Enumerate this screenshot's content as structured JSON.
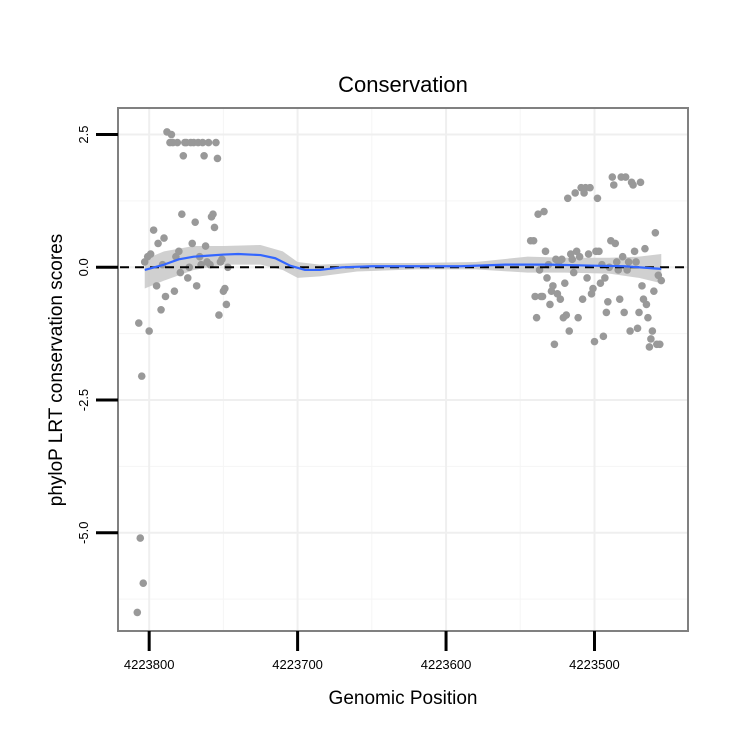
{
  "chart_data": {
    "type": "scatter",
    "title": "Conservation",
    "xlabel": "Genomic Position",
    "ylabel": "phyloP LRT conservation scores",
    "x_reversed": true,
    "xlim": [
      4223821,
      4223437
    ],
    "ylim": [
      -6.85,
      3.0
    ],
    "x_ticks": [
      4223800,
      4223700,
      4223600,
      4223500
    ],
    "x_tick_labels": [
      "4223800",
      "4223700",
      "4223600",
      "4223500"
    ],
    "y_ticks": [
      2.5,
      0.0,
      -2.5,
      -5.0
    ],
    "y_tick_labels": [
      "2.5",
      "0.0",
      "-2.5",
      "-5.0"
    ],
    "reference_line": {
      "y": 0,
      "style": "dashed",
      "color": "#000000"
    },
    "point_color": "#999999",
    "smooth_color": "#3366ff",
    "band_color": "#c8c8c8",
    "points": [
      [
        4223807,
        -1.05
      ],
      [
        4223805,
        -2.05
      ],
      [
        4223806,
        -5.1
      ],
      [
        4223804,
        -5.95
      ],
      [
        4223808,
        -6.5
      ],
      [
        4223803,
        0.1
      ],
      [
        4223801,
        0.2
      ],
      [
        4223800,
        -1.2
      ],
      [
        4223799,
        0.25
      ],
      [
        4223797,
        0.7
      ],
      [
        4223795,
        -0.35
      ],
      [
        4223794,
        0.45
      ],
      [
        4223792,
        -0.8
      ],
      [
        4223791,
        0.05
      ],
      [
        4223790,
        0.55
      ],
      [
        4223789,
        -0.55
      ],
      [
        4223788,
        2.55
      ],
      [
        4223786,
        2.35
      ],
      [
        4223785,
        2.5
      ],
      [
        4223784,
        2.35
      ],
      [
        4223783,
        -0.45
      ],
      [
        4223782,
        0.2
      ],
      [
        4223781,
        2.35
      ],
      [
        4223780,
        0.3
      ],
      [
        4223779,
        -0.1
      ],
      [
        4223778,
        1.0
      ],
      [
        4223777,
        2.1
      ],
      [
        4223776,
        2.35
      ],
      [
        4223775,
        2.35
      ],
      [
        4223774,
        -0.2
      ],
      [
        4223773,
        0.0
      ],
      [
        4223772,
        2.35
      ],
      [
        4223771,
        0.45
      ],
      [
        4223770,
        2.35
      ],
      [
        4223769,
        0.85
      ],
      [
        4223768,
        -0.35
      ],
      [
        4223767,
        2.35
      ],
      [
        4223766,
        0.2
      ],
      [
        4223765,
        0.05
      ],
      [
        4223764,
        2.35
      ],
      [
        4223763,
        2.1
      ],
      [
        4223762,
        0.4
      ],
      [
        4223761,
        0.1
      ],
      [
        4223760,
        2.35
      ],
      [
        4223759,
        0.05
      ],
      [
        4223758,
        0.95
      ],
      [
        4223757,
        1.0
      ],
      [
        4223756,
        0.75
      ],
      [
        4223755,
        2.35
      ],
      [
        4223754,
        2.05
      ],
      [
        4223753,
        -0.9
      ],
      [
        4223752,
        0.1
      ],
      [
        4223751,
        0.15
      ],
      [
        4223750,
        -0.45
      ],
      [
        4223749,
        -0.4
      ],
      [
        4223748,
        -0.7
      ],
      [
        4223747,
        0.0
      ],
      [
        4223543,
        0.5
      ],
      [
        4223541,
        0.5
      ],
      [
        4223540,
        -0.55
      ],
      [
        4223539,
        -0.95
      ],
      [
        4223538,
        1.0
      ],
      [
        4223537,
        -0.05
      ],
      [
        4223536,
        -0.55
      ],
      [
        4223535,
        -0.55
      ],
      [
        4223534,
        1.05
      ],
      [
        4223533,
        0.3
      ],
      [
        4223532,
        -0.2
      ],
      [
        4223531,
        0.05
      ],
      [
        4223530,
        -0.7
      ],
      [
        4223529,
        -0.45
      ],
      [
        4223528,
        -0.35
      ],
      [
        4223527,
        -1.45
      ],
      [
        4223526,
        0.15
      ],
      [
        4223525,
        -0.5
      ],
      [
        4223524,
        0.1
      ],
      [
        4223523,
        -0.6
      ],
      [
        4223522,
        0.15
      ],
      [
        4223521,
        -0.95
      ],
      [
        4223520,
        -0.3
      ],
      [
        4223519,
        -0.9
      ],
      [
        4223518,
        1.3
      ],
      [
        4223517,
        -1.2
      ],
      [
        4223516,
        0.25
      ],
      [
        4223515,
        0.15
      ],
      [
        4223514,
        -0.1
      ],
      [
        4223513,
        1.4
      ],
      [
        4223512,
        0.3
      ],
      [
        4223511,
        -0.95
      ],
      [
        4223510,
        0.2
      ],
      [
        4223509,
        1.5
      ],
      [
        4223508,
        -0.6
      ],
      [
        4223507,
        1.4
      ],
      [
        4223506,
        1.5
      ],
      [
        4223505,
        -0.2
      ],
      [
        4223504,
        0.25
      ],
      [
        4223503,
        1.5
      ],
      [
        4223502,
        -0.5
      ],
      [
        4223501,
        -0.4
      ],
      [
        4223500,
        -1.4
      ],
      [
        4223499,
        0.3
      ],
      [
        4223498,
        1.3
      ],
      [
        4223497,
        0.3
      ],
      [
        4223496,
        -0.3
      ],
      [
        4223495,
        0.05
      ],
      [
        4223494,
        -1.3
      ],
      [
        4223493,
        -0.2
      ],
      [
        4223492,
        -0.85
      ],
      [
        4223491,
        -0.65
      ],
      [
        4223490,
        0.0
      ],
      [
        4223489,
        0.5
      ],
      [
        4223488,
        1.7
      ],
      [
        4223487,
        1.55
      ],
      [
        4223486,
        0.45
      ],
      [
        4223485,
        0.1
      ],
      [
        4223484,
        -0.05
      ],
      [
        4223483,
        -0.6
      ],
      [
        4223482,
        1.7
      ],
      [
        4223481,
        0.2
      ],
      [
        4223480,
        -0.85
      ],
      [
        4223479,
        1.7
      ],
      [
        4223478,
        -0.05
      ],
      [
        4223477,
        0.1
      ],
      [
        4223476,
        -1.2
      ],
      [
        4223475,
        1.6
      ],
      [
        4223474,
        1.55
      ],
      [
        4223473,
        0.3
      ],
      [
        4223472,
        0.1
      ],
      [
        4223471,
        -1.15
      ],
      [
        4223470,
        -0.85
      ],
      [
        4223469,
        1.6
      ],
      [
        4223468,
        -0.35
      ],
      [
        4223467,
        -0.6
      ],
      [
        4223466,
        0.35
      ],
      [
        4223465,
        -0.7
      ],
      [
        4223464,
        -0.95
      ],
      [
        4223463,
        -1.5
      ],
      [
        4223462,
        -1.35
      ],
      [
        4223461,
        -1.2
      ],
      [
        4223460,
        -0.45
      ],
      [
        4223459,
        0.65
      ],
      [
        4223458,
        -1.45
      ],
      [
        4223457,
        -0.15
      ],
      [
        4223456,
        -1.45
      ],
      [
        4223455,
        -0.25
      ]
    ],
    "smooth_line": [
      [
        4223803,
        -0.05
      ],
      [
        4223790,
        0.05
      ],
      [
        4223780,
        0.15
      ],
      [
        4223770,
        0.2
      ],
      [
        4223760,
        0.22
      ],
      [
        4223750,
        0.24
      ],
      [
        4223740,
        0.25
      ],
      [
        4223725,
        0.23
      ],
      [
        4223715,
        0.17
      ],
      [
        4223705,
        0.03
      ],
      [
        4223695,
        -0.05
      ],
      [
        4223685,
        -0.05
      ],
      [
        4223670,
        0.0
      ],
      [
        4223650,
        0.02
      ],
      [
        4223620,
        0.02
      ],
      [
        4223590,
        0.02
      ],
      [
        4223560,
        0.05
      ],
      [
        4223530,
        0.05
      ],
      [
        4223500,
        0.03
      ],
      [
        4223480,
        0.02
      ],
      [
        4223460,
        -0.02
      ],
      [
        4223455,
        -0.03
      ]
    ],
    "band_upper": [
      [
        4223803,
        0.15
      ],
      [
        4223790,
        0.3
      ],
      [
        4223770,
        0.4
      ],
      [
        4223750,
        0.4
      ],
      [
        4223725,
        0.42
      ],
      [
        4223710,
        0.3
      ],
      [
        4223700,
        0.1
      ],
      [
        4223685,
        0.05
      ],
      [
        4223660,
        0.08
      ],
      [
        4223620,
        0.08
      ],
      [
        4223580,
        0.1
      ],
      [
        4223545,
        0.2
      ],
      [
        4223520,
        0.18
      ],
      [
        4223490,
        0.18
      ],
      [
        4223470,
        0.2
      ],
      [
        4223455,
        0.25
      ]
    ],
    "band_lower": [
      [
        4223803,
        -0.4
      ],
      [
        4223790,
        -0.25
      ],
      [
        4223770,
        -0.05
      ],
      [
        4223750,
        0.05
      ],
      [
        4223725,
        0.05
      ],
      [
        4223710,
        -0.05
      ],
      [
        4223700,
        -0.2
      ],
      [
        4223685,
        -0.17
      ],
      [
        4223660,
        -0.08
      ],
      [
        4223620,
        -0.04
      ],
      [
        4223580,
        -0.04
      ],
      [
        4223545,
        -0.1
      ],
      [
        4223520,
        -0.1
      ],
      [
        4223490,
        -0.12
      ],
      [
        4223470,
        -0.2
      ],
      [
        4223455,
        -0.3
      ]
    ]
  }
}
